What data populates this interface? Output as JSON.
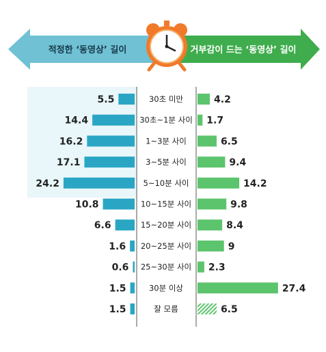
{
  "header": {
    "left_label": "적정한 ‘동영상’ 길이",
    "right_label": "거부감이 드는 ‘동영상’ 길이",
    "icon": "alarm-clock-icon"
  },
  "colors": {
    "left_bar": "#2aa6c4",
    "right_bar": "#5cc46c",
    "left_banner": "#6fc1d3",
    "right_banner": "#3fad4d",
    "highlight": "#e9f6fa",
    "clock": "#f07a2a"
  },
  "chart_data": {
    "type": "bar",
    "orientation": "diverging-horizontal",
    "categories": [
      "30초 미만",
      "30초~1분 사이",
      "1~3분 사이",
      "3~5분 사이",
      "5~10분 사이",
      "10~15분 사이",
      "15~20분 사이",
      "20~25분 사이",
      "25~30분 사이",
      "30분 이상",
      "잘 모름"
    ],
    "series": [
      {
        "name": "적정한 ‘동영상’ 길이",
        "side": "left",
        "values": [
          5.5,
          14.4,
          16.2,
          17.1,
          24.2,
          10.8,
          6.6,
          1.6,
          0.6,
          1.5,
          1.5
        ],
        "labels": [
          "5.5",
          "14.4",
          "16.2",
          "17.1",
          "24.2",
          "10.8",
          "6.6",
          "1.6",
          "0.6",
          "1.5",
          "1.5"
        ]
      },
      {
        "name": "거부감이 드는 ‘동영상’ 길이",
        "side": "right",
        "values": [
          4.2,
          1.7,
          6.5,
          9.4,
          14.2,
          9.8,
          8.4,
          9,
          2.3,
          27.4,
          6.5
        ],
        "labels": [
          "4.2",
          "1.7",
          "6.5",
          "9.4",
          "14.2",
          "9.8",
          "8.4",
          "9",
          "2.3",
          "27.4",
          "6.5"
        ]
      }
    ],
    "highlighted_left_rows": [
      "30초 미만",
      "30초~1분 사이",
      "1~3분 사이",
      "3~5분 사이",
      "5~10분 사이"
    ],
    "hatched_category": "잘 모름",
    "grid": false,
    "legend": "top"
  }
}
